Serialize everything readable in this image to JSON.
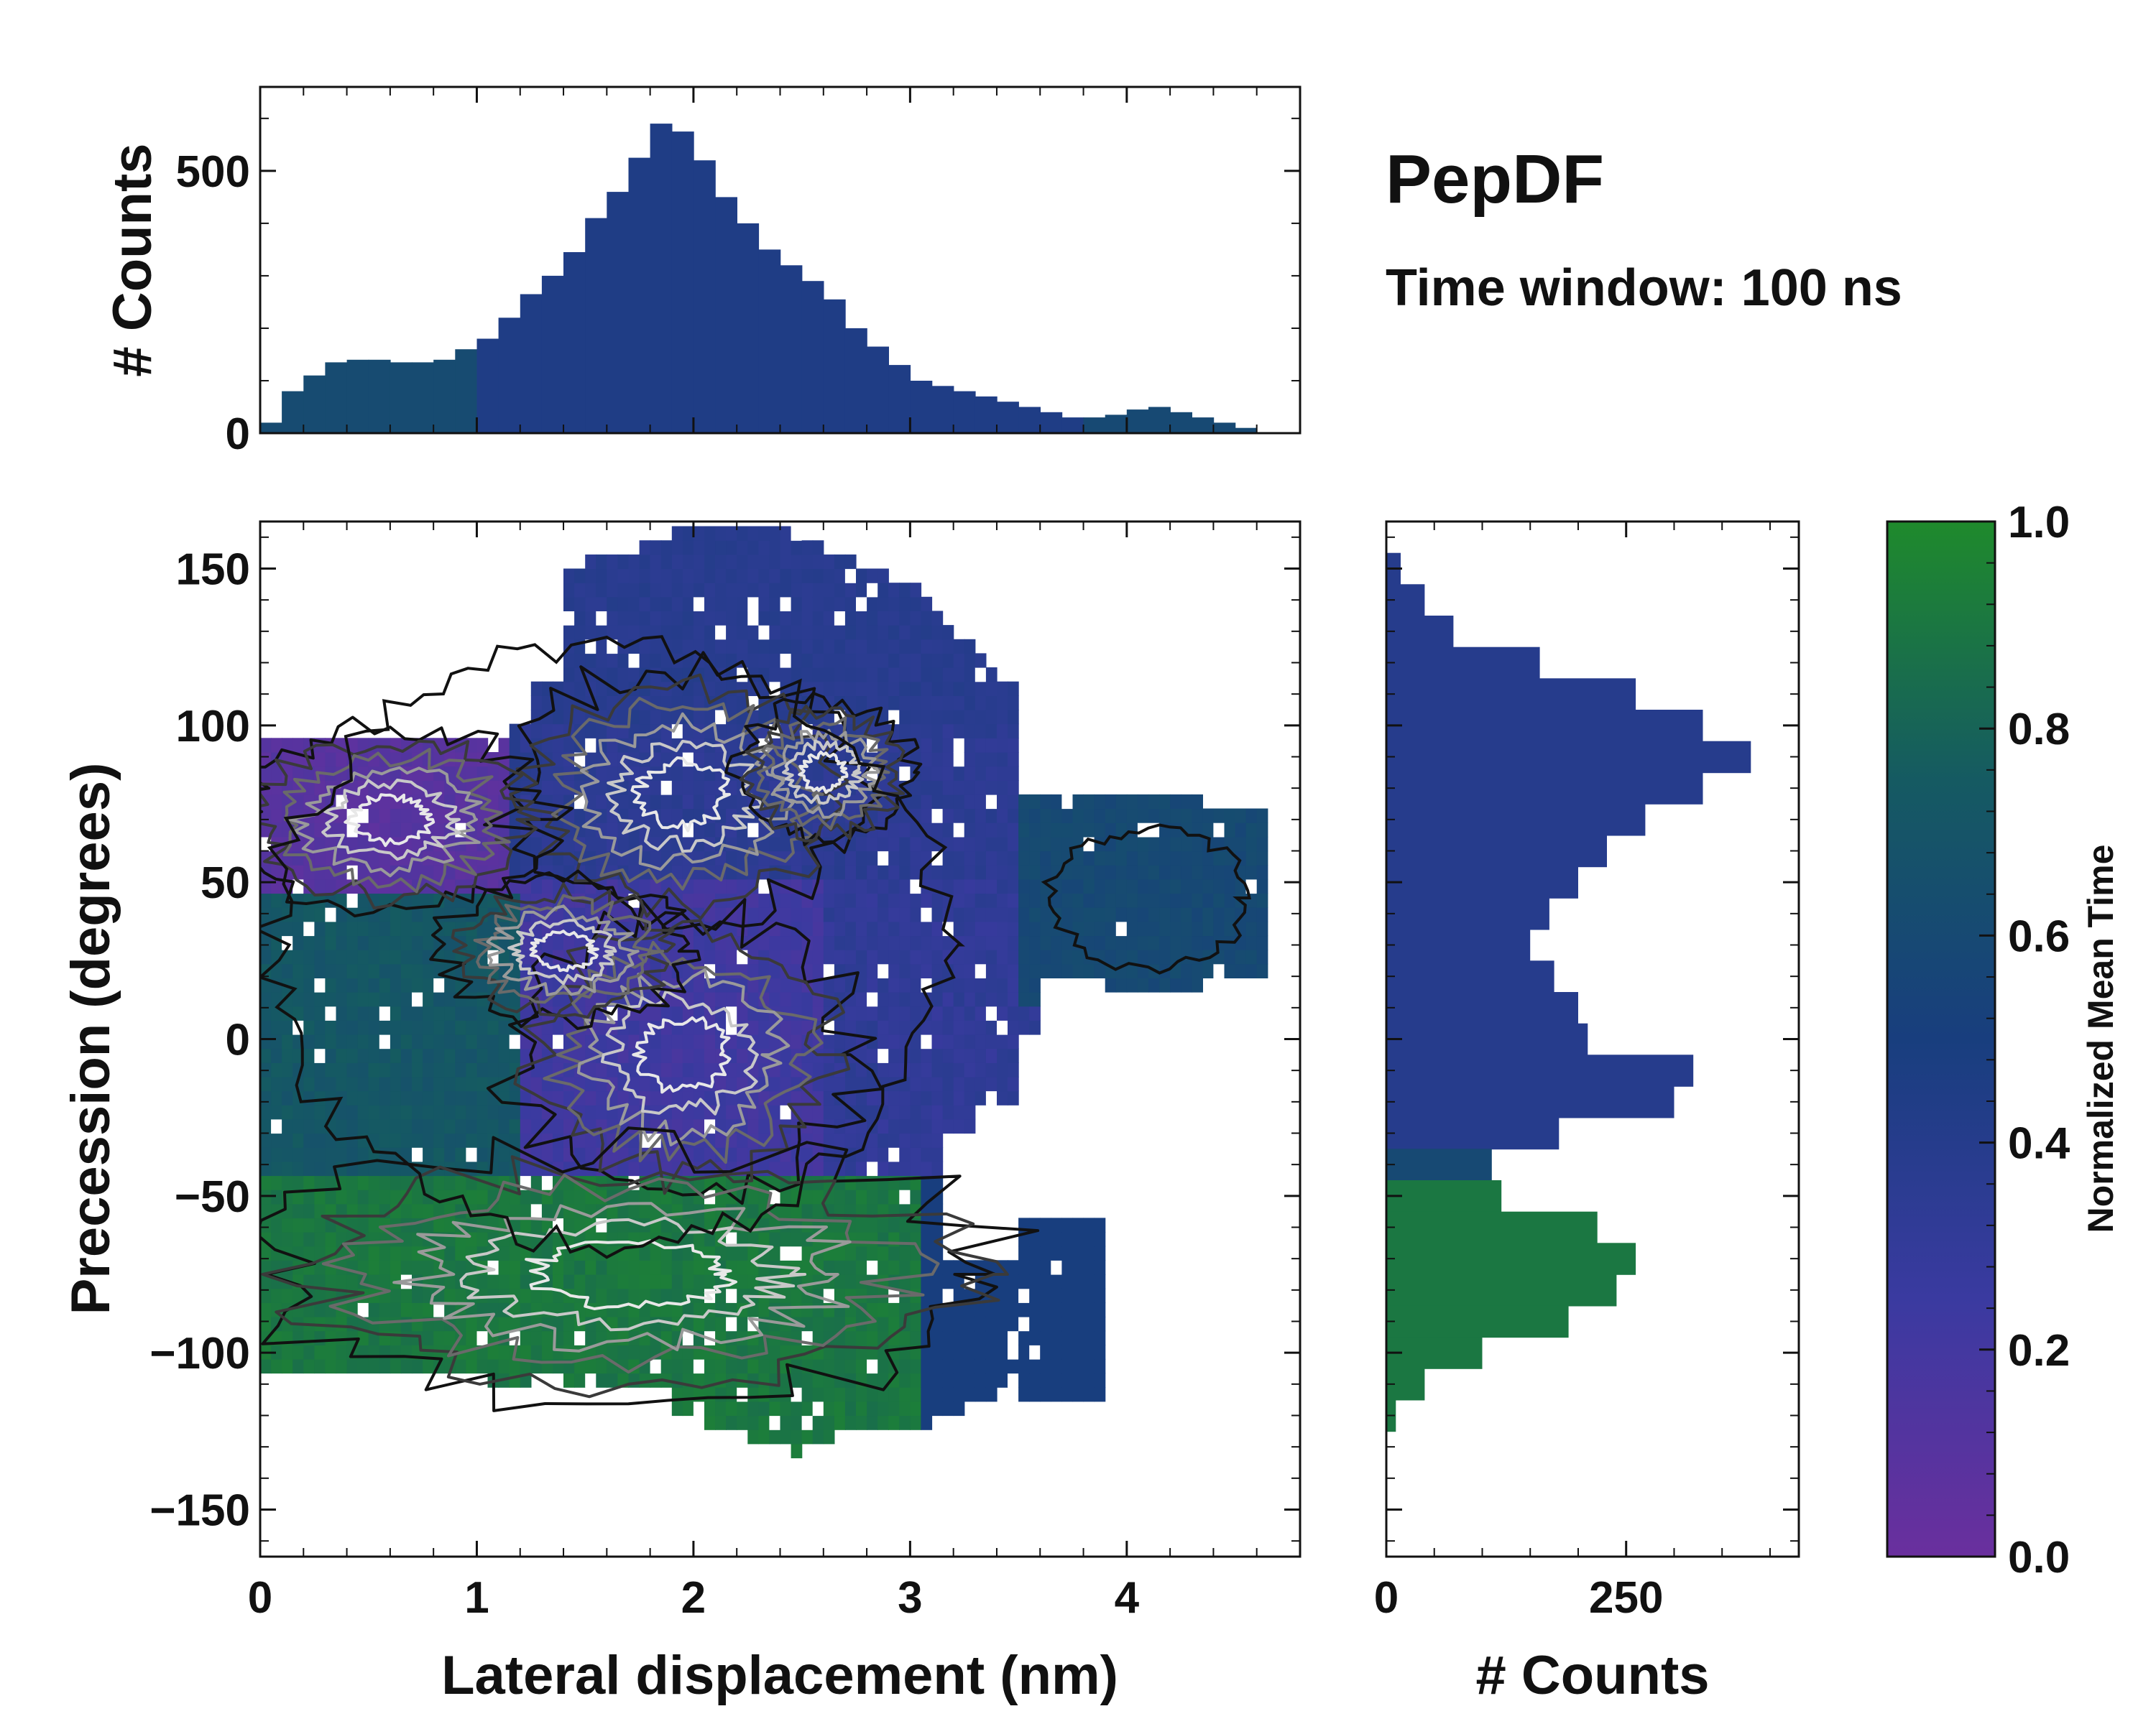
{
  "title": "PepDF",
  "subtitle": "Time window: 100 ns",
  "colormap": {
    "label": "Normalized Mean Time",
    "range": [
      0.0,
      1.0
    ],
    "ticks": [
      "0.0",
      "0.2",
      "0.4",
      "0.6",
      "0.8",
      "1.0"
    ],
    "stops": [
      "#6a2f9e",
      "#3a3aa0",
      "#183e7e",
      "#155a62",
      "#1f8a2c"
    ]
  },
  "chart_data": [
    {
      "id": "top_histogram",
      "type": "bar",
      "xlabel": "",
      "ylabel": "# Counts",
      "xlim": [
        0,
        4.8
      ],
      "ylim": [
        0,
        660
      ],
      "yticks": [
        "0",
        "500"
      ],
      "x": [
        0.05,
        0.15,
        0.25,
        0.35,
        0.45,
        0.55,
        0.65,
        0.75,
        0.85,
        0.95,
        1.05,
        1.15,
        1.25,
        1.35,
        1.45,
        1.55,
        1.65,
        1.75,
        1.85,
        1.95,
        2.05,
        2.15,
        2.25,
        2.35,
        2.45,
        2.55,
        2.65,
        2.75,
        2.85,
        2.95,
        3.05,
        3.15,
        3.25,
        3.35,
        3.45,
        3.55,
        3.65,
        3.75,
        3.85,
        3.95,
        4.05,
        4.15,
        4.25,
        4.35,
        4.45,
        4.55
      ],
      "values": [
        20,
        80,
        110,
        135,
        140,
        140,
        135,
        135,
        140,
        160,
        180,
        220,
        265,
        300,
        345,
        410,
        460,
        525,
        590,
        575,
        520,
        450,
        400,
        350,
        320,
        290,
        255,
        200,
        165,
        130,
        100,
        90,
        80,
        70,
        60,
        50,
        40,
        30,
        30,
        35,
        45,
        50,
        40,
        30,
        20,
        10
      ]
    },
    {
      "id": "right_histogram",
      "type": "bar",
      "orientation": "horizontal",
      "xlabel": "# Counts",
      "xlim": [
        0,
        430
      ],
      "xticks": [
        "0",
        "250"
      ],
      "y": [
        150,
        140,
        130,
        120,
        110,
        100,
        90,
        80,
        70,
        60,
        50,
        40,
        30,
        20,
        10,
        0,
        -10,
        -20,
        -30,
        -40,
        -50,
        -60,
        -70,
        -80,
        -90,
        -100,
        -110,
        -120
      ],
      "values": [
        15,
        40,
        70,
        160,
        260,
        330,
        380,
        330,
        270,
        230,
        200,
        170,
        150,
        175,
        200,
        210,
        320,
        300,
        180,
        110,
        120,
        220,
        260,
        240,
        190,
        100,
        40,
        10
      ]
    },
    {
      "id": "main_map",
      "type": "heatmap",
      "xlabel": "Lateral displacement (nm)",
      "ylabel": "Precession (degrees)",
      "xlim": [
        0,
        4.8
      ],
      "ylim": [
        -165,
        165
      ],
      "xticks": [
        "0",
        "1",
        "2",
        "3",
        "4"
      ],
      "yticks": [
        "−150",
        "−100",
        "−50",
        "0",
        "50",
        "100",
        "150"
      ],
      "regions": [
        {
          "name": "upper-basin",
          "x_range": [
            1.2,
            3.6
          ],
          "y_range": [
            40,
            160
          ],
          "mean_time": 0.4
        },
        {
          "name": "left-upper-purple",
          "x_range": [
            0,
            1.2
          ],
          "y_range": [
            45,
            100
          ],
          "mean_time": 0.1
        },
        {
          "name": "central-purple",
          "x_range": [
            1.0,
            3.5
          ],
          "y_range": [
            -20,
            50
          ],
          "mean_time": 0.2
        },
        {
          "name": "right-teal-lobe",
          "x_range": [
            3.5,
            4.7
          ],
          "y_range": [
            10,
            80
          ],
          "mean_time": 0.6
        },
        {
          "name": "left-teal",
          "x_range": [
            0,
            1.2
          ],
          "y_range": [
            -40,
            45
          ],
          "mean_time": 0.7
        },
        {
          "name": "lower-green",
          "x_range": [
            0,
            3.2
          ],
          "y_range": [
            -130,
            -40
          ],
          "mean_time": 0.9
        },
        {
          "name": "lower-right-blue",
          "x_range": [
            3.1,
            3.8
          ],
          "y_range": [
            -110,
            -60
          ],
          "mean_time": 0.5
        }
      ]
    }
  ]
}
